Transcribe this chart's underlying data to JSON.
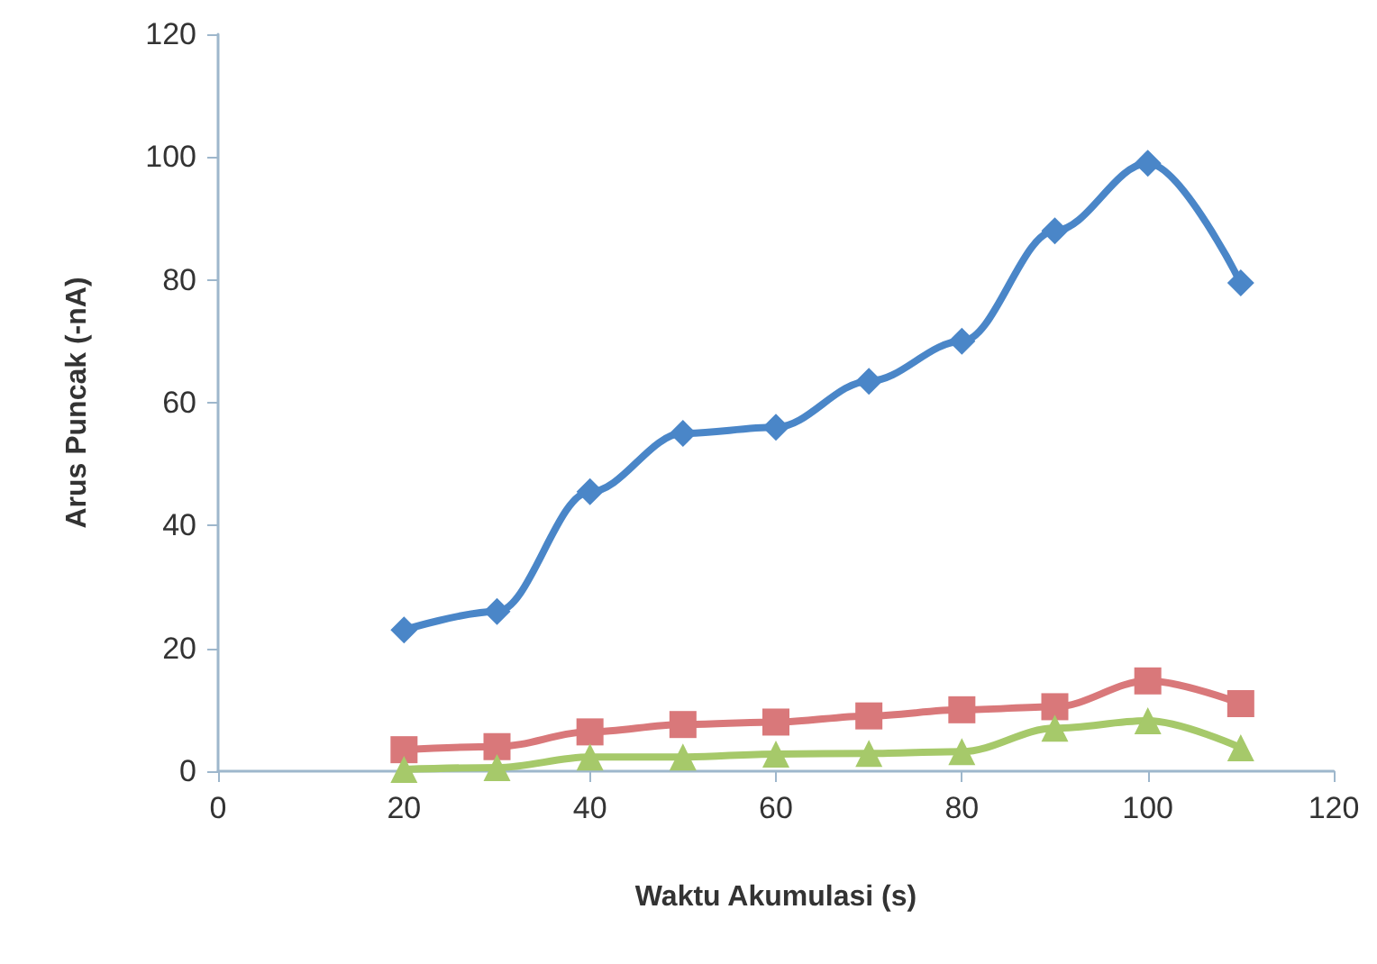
{
  "chart_data": {
    "type": "line",
    "xlabel": "Waktu Akumulasi (s)",
    "ylabel": "Arus Puncak (-nA)",
    "x": [
      20,
      30,
      40,
      50,
      60,
      70,
      80,
      90,
      100,
      110
    ],
    "series": [
      {
        "color": "#4a86c8",
        "marker": "diamond",
        "values": [
          23,
          26,
          45.5,
          55,
          56,
          63.5,
          70,
          88,
          99,
          79.5
        ]
      },
      {
        "color": "#d9787a",
        "marker": "square",
        "values": [
          3.5,
          4,
          6.4,
          7.6,
          8,
          9,
          10,
          10.5,
          14.7,
          11
        ]
      },
      {
        "color": "#a6c96a",
        "marker": "triangle",
        "values": [
          0.3,
          0.6,
          2.3,
          2.3,
          2.8,
          2.9,
          3.2,
          7,
          8.2,
          3.8
        ]
      }
    ],
    "xlim": [
      0,
      120
    ],
    "xticks": [
      0,
      20,
      40,
      60,
      80,
      100,
      120
    ],
    "ylim": [
      0,
      120
    ],
    "yticks": [
      0,
      20,
      40,
      60,
      80,
      100,
      120
    ],
    "grid": false,
    "line_style": "solid"
  }
}
